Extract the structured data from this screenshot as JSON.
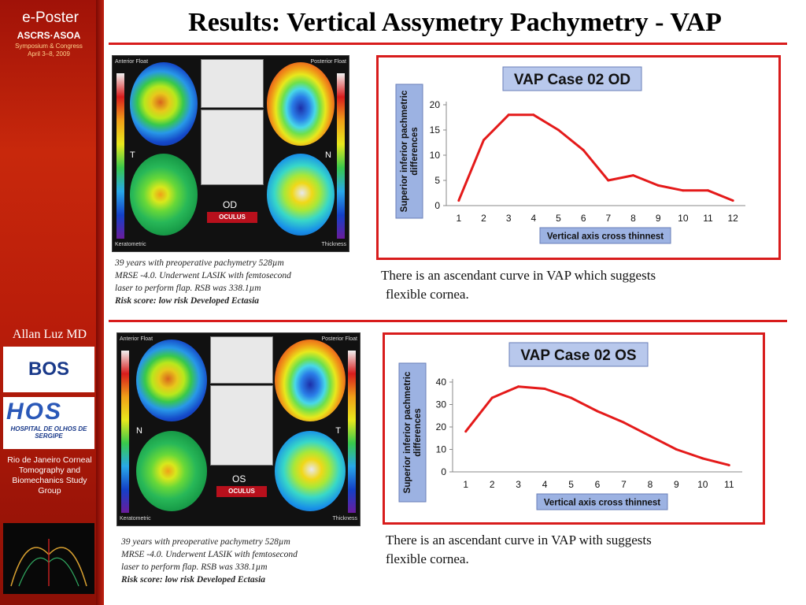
{
  "sidebar": {
    "event": "e-Poster",
    "logo_text": "ASCRS·ASOA",
    "logo_sub": "Symposium & Congress",
    "dates": "April 3–8, 2009",
    "author": "Allan Luz MD",
    "bos_logo": "BOS",
    "hos_logo": "HOS",
    "hos_name": "HOSPITAL DE OLHOS DE SERGIPE",
    "group": "Rio de Janeiro Corneal Tomography and Biomechanics Study Group"
  },
  "title": "Results: Vertical Assymetry Pachymetry - VAP",
  "topography": {
    "od": {
      "eye": "OD",
      "left": "T",
      "right": "N",
      "label_ant": "Anterior Float",
      "label_post": "Posterior Float",
      "label_ker": "Keratometric",
      "label_thk": "Thickness",
      "brand": "OCULUS"
    },
    "os": {
      "eye": "OS",
      "left": "N",
      "right": "T",
      "label_ant": "Anterior Float",
      "label_post": "Posterior Float",
      "label_ker": "Keratometric",
      "label_thk": "Thickness",
      "brand": "OCULUS"
    }
  },
  "caption_od": {
    "line1": "39 years with preoperative pachymetry 528µm",
    "line2": "MRSE -4.0. Underwent LASIK with femtosecond",
    "line3": "laser to perform flap. RSB was 338.1µm",
    "risk": "Risk score: low risk Developed Ectasia"
  },
  "caption_os": {
    "line1": "39 years with preoperative pachymetry 528µm",
    "line2": "MRSE -4.0. Underwent LASIK with femtosecond",
    "line3": "laser to perform flap. RSB was 338.1µm",
    "risk": "Risk score: low risk Developed Ectasia"
  },
  "comment_od": {
    "line1": "There is an ascendant curve in VAP which suggests",
    "line2": "flexible cornea."
  },
  "comment_os": {
    "line1": "There is an ascendant  curve in VAP with suggests",
    "line2": "flexible cornea."
  },
  "colors": {
    "accent": "#d81c1c",
    "line": "#e41a1a",
    "title_box": "#b8c8ec",
    "xlabel_box": "#9cb2e2"
  },
  "chart_data": [
    {
      "type": "line",
      "title": "VAP Case 02 OD",
      "xlabel": "Vertical axis cross thinnest",
      "ylabel": "Superior inferior pachmetric differences",
      "x": [
        1,
        2,
        3,
        4,
        5,
        6,
        7,
        8,
        9,
        10,
        11,
        12
      ],
      "values": [
        1,
        13,
        18,
        18,
        15,
        11,
        5,
        6,
        4,
        3,
        3,
        1
      ],
      "ylim": [
        0,
        20
      ],
      "yticks": [
        0,
        5,
        10,
        15,
        20
      ],
      "grid": false,
      "legend": "none"
    },
    {
      "type": "line",
      "title": "VAP Case 02 OS",
      "xlabel": "Vertical axis cross thinnest",
      "ylabel": "Superior inferior pachmetric differences",
      "x": [
        1,
        2,
        3,
        4,
        5,
        6,
        7,
        8,
        9,
        10,
        11
      ],
      "values": [
        18,
        33,
        38,
        37,
        33,
        27,
        22,
        16,
        10,
        6,
        3
      ],
      "ylim": [
        0,
        40
      ],
      "yticks": [
        0,
        10,
        20,
        30,
        40
      ],
      "grid": false,
      "legend": "none"
    }
  ]
}
